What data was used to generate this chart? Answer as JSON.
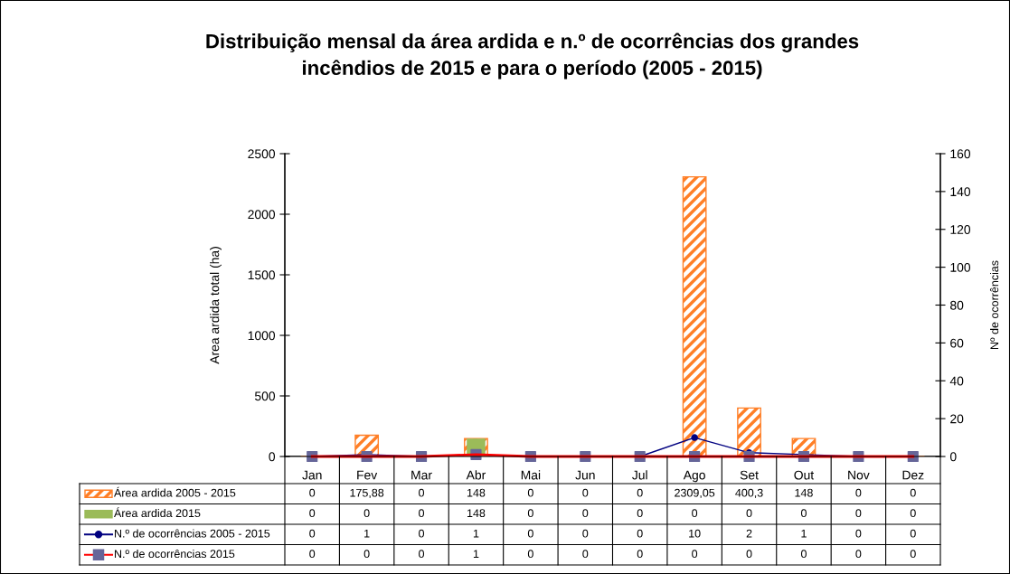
{
  "chart_data": {
    "type": "bar",
    "title": "Distribuição mensal da área ardida e n.º de ocorrências dos grandes\nincêndios de 2015 e para o período (2005 - 2015)",
    "categories": [
      "Jan",
      "Fev",
      "Mar",
      "Abr",
      "Mai",
      "Jun",
      "Jul",
      "Ago",
      "Set",
      "Out",
      "Nov",
      "Dez"
    ],
    "ylabel": "Area ardida total (ha)",
    "y2label": "Nº de ocorrências",
    "ylim": [
      0,
      2500
    ],
    "yticks": [
      0,
      500,
      1000,
      1500,
      2000,
      2500
    ],
    "y2lim": [
      0,
      160
    ],
    "y2ticks": [
      0,
      20,
      40,
      60,
      80,
      100,
      120,
      140,
      160
    ],
    "legend": "bottom",
    "grid": false,
    "series": [
      {
        "name": "Área ardida 2005 - 2015",
        "color": "#ff7f27",
        "values": [
          0,
          175.88,
          0,
          148,
          0,
          0,
          0,
          2309.05,
          400.3,
          148,
          0,
          0
        ],
        "value_labels": [
          "0",
          "175,88",
          "0",
          "148",
          "0",
          "0",
          "0",
          "2309,05",
          "400,3",
          "148",
          "0",
          "0"
        ]
      },
      {
        "name": "Área ardida 2015",
        "color": "#9bbb59",
        "values": [
          0,
          0,
          0,
          148,
          0,
          0,
          0,
          0,
          0,
          0,
          0,
          0
        ],
        "value_labels": [
          "0",
          "0",
          "0",
          "148",
          "0",
          "0",
          "0",
          "0",
          "0",
          "0",
          "0",
          "0"
        ]
      },
      {
        "name": "N.º de ocorrências 2005 - 2015",
        "type": "line",
        "axis": "y2",
        "color": "#000080",
        "marker": "circle",
        "values": [
          0,
          1,
          0,
          1,
          0,
          0,
          0,
          10,
          2,
          1,
          0,
          0
        ],
        "value_labels": [
          "0",
          "1",
          "0",
          "1",
          "0",
          "0",
          "0",
          "10",
          "2",
          "1",
          "0",
          "0"
        ]
      },
      {
        "name": "N.º de ocorrências 2015",
        "type": "line",
        "axis": "y2",
        "color": "#ff0000",
        "marker": "square",
        "colors": [
          "#666699",
          "#666699",
          "#666699",
          "#666699",
          "#666699",
          "#666699",
          "#666699",
          "#666699",
          "#666699",
          "#666699",
          "#666699",
          "#666699"
        ],
        "values": [
          0,
          0,
          0,
          1,
          0,
          0,
          0,
          0,
          0,
          0,
          0,
          0
        ],
        "value_labels": [
          "0",
          "0",
          "0",
          "1",
          "0",
          "0",
          "0",
          "0",
          "0",
          "0",
          "0",
          "0"
        ]
      }
    ]
  }
}
